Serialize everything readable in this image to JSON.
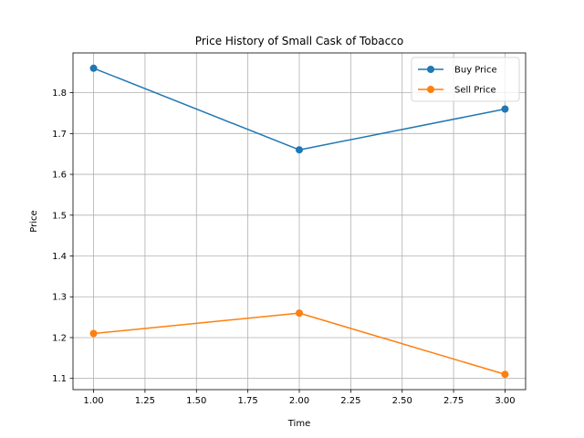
{
  "chart_data": {
    "type": "line",
    "title": "Price History of Small Cask of Tobacco",
    "xlabel": "Time",
    "ylabel": "Price",
    "x": [
      1.0,
      2.0,
      3.0
    ],
    "series": [
      {
        "name": "Buy Price",
        "values": [
          1.86,
          1.66,
          1.76
        ],
        "color": "#1f77b4"
      },
      {
        "name": "Sell Price",
        "values": [
          1.21,
          1.26,
          1.11
        ],
        "color": "#ff7f0e"
      }
    ],
    "xlim": [
      0.9,
      3.1
    ],
    "ylim": [
      1.0725,
      1.8975
    ],
    "xticks": [
      1.0,
      1.25,
      1.5,
      1.75,
      2.0,
      2.25,
      2.5,
      2.75,
      3.0
    ],
    "xtick_labels": [
      "1.00",
      "1.25",
      "1.50",
      "1.75",
      "2.00",
      "2.25",
      "2.50",
      "2.75",
      "3.00"
    ],
    "yticks": [
      1.1,
      1.2,
      1.3,
      1.4,
      1.5,
      1.6,
      1.7,
      1.8
    ],
    "ytick_labels": [
      "1.1",
      "1.2",
      "1.3",
      "1.4",
      "1.5",
      "1.6",
      "1.7",
      "1.8"
    ],
    "grid": true,
    "legend_position": "top-right"
  }
}
